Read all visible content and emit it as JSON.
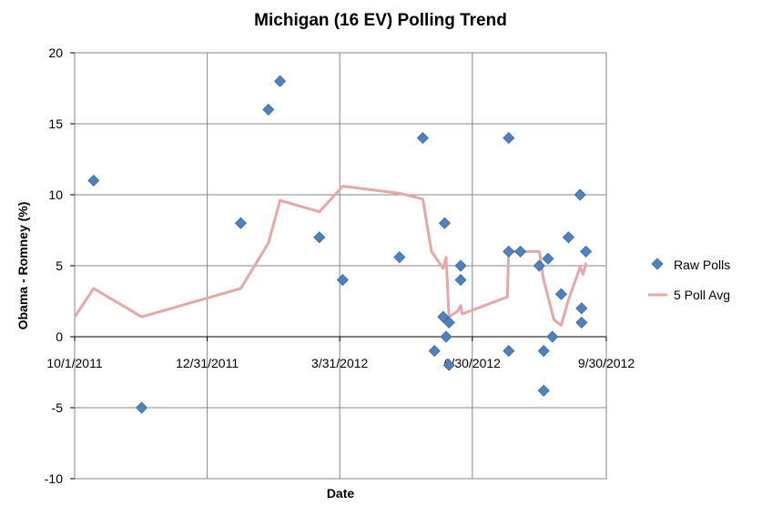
{
  "chart_data": {
    "type": "scatter",
    "title": "Michigan (16 EV) Polling Trend",
    "xlabel": "Date",
    "ylabel": "Obama - Romney (%)",
    "xlim": [
      "2011-10-01",
      "2012-09-30"
    ],
    "ylim": [
      -10,
      20
    ],
    "x_ticks": [
      "2011-10-01",
      "2011-12-31",
      "2012-03-31",
      "2012-06-30",
      "2012-09-30"
    ],
    "x_tick_labels": [
      "10/1/2011",
      "12/31/2011",
      "3/31/2012",
      "6/30/2012",
      "9/30/2012"
    ],
    "y_ticks": [
      -10,
      -5,
      0,
      5,
      10,
      15,
      20
    ],
    "y_tick_labels": [
      "-10",
      "-5",
      "0",
      "5",
      "10",
      "15",
      "20"
    ],
    "grid": true,
    "legend_position": "right",
    "series": [
      {
        "name": "Raw Polls",
        "kind": "scatter",
        "color": "#4f81bd",
        "marker": "diamond",
        "points": [
          {
            "x": "2011-10-14",
            "y": 11
          },
          {
            "x": "2011-11-16",
            "y": -5
          },
          {
            "x": "2012-01-23",
            "y": 8
          },
          {
            "x": "2012-02-11",
            "y": 16
          },
          {
            "x": "2012-02-19",
            "y": 18
          },
          {
            "x": "2012-03-17",
            "y": 7
          },
          {
            "x": "2012-04-02",
            "y": 4
          },
          {
            "x": "2012-05-11",
            "y": 5.6
          },
          {
            "x": "2012-05-27",
            "y": 14
          },
          {
            "x": "2012-06-04",
            "y": -1
          },
          {
            "x": "2012-06-10",
            "y": 1.4
          },
          {
            "x": "2012-06-11",
            "y": 8
          },
          {
            "x": "2012-06-12",
            "y": 0
          },
          {
            "x": "2012-06-14",
            "y": 1
          },
          {
            "x": "2012-06-14",
            "y": -2
          },
          {
            "x": "2012-06-22",
            "y": 5
          },
          {
            "x": "2012-06-22",
            "y": 4
          },
          {
            "x": "2012-07-25",
            "y": 6
          },
          {
            "x": "2012-07-25",
            "y": 14
          },
          {
            "x": "2012-07-25",
            "y": -1
          },
          {
            "x": "2012-08-02",
            "y": 6
          },
          {
            "x": "2012-08-15",
            "y": 5
          },
          {
            "x": "2012-08-18",
            "y": -1
          },
          {
            "x": "2012-08-18",
            "y": -3.8
          },
          {
            "x": "2012-08-21",
            "y": 5.5
          },
          {
            "x": "2012-08-24",
            "y": 0
          },
          {
            "x": "2012-08-30",
            "y": 3
          },
          {
            "x": "2012-09-04",
            "y": 7
          },
          {
            "x": "2012-09-12",
            "y": 10
          },
          {
            "x": "2012-09-13",
            "y": 2
          },
          {
            "x": "2012-09-13",
            "y": 1
          },
          {
            "x": "2012-09-16",
            "y": 6
          }
        ]
      },
      {
        "name": "5 Poll Avg",
        "kind": "line",
        "color": "#e6a8a6",
        "points": [
          {
            "x": "2011-10-01",
            "y": 1.4
          },
          {
            "x": "2011-10-14",
            "y": 3.4
          },
          {
            "x": "2011-11-16",
            "y": 1.4
          },
          {
            "x": "2012-01-23",
            "y": 3.4
          },
          {
            "x": "2012-02-11",
            "y": 6.6
          },
          {
            "x": "2012-02-19",
            "y": 9.6
          },
          {
            "x": "2012-03-17",
            "y": 8.8
          },
          {
            "x": "2012-04-02",
            "y": 10.6
          },
          {
            "x": "2012-05-11",
            "y": 10.1
          },
          {
            "x": "2012-05-27",
            "y": 9.7
          },
          {
            "x": "2012-06-02",
            "y": 6
          },
          {
            "x": "2012-06-10",
            "y": 4.8
          },
          {
            "x": "2012-06-12",
            "y": 5.6
          },
          {
            "x": "2012-06-14",
            "y": 1.4
          },
          {
            "x": "2012-06-20",
            "y": 1.8
          },
          {
            "x": "2012-06-22",
            "y": 2.2
          },
          {
            "x": "2012-06-23",
            "y": 1.6
          },
          {
            "x": "2012-07-24",
            "y": 2.8
          },
          {
            "x": "2012-07-25",
            "y": 6
          },
          {
            "x": "2012-08-15",
            "y": 6
          },
          {
            "x": "2012-08-18",
            "y": 4
          },
          {
            "x": "2012-08-21",
            "y": 2.8
          },
          {
            "x": "2012-08-25",
            "y": 1.2
          },
          {
            "x": "2012-08-30",
            "y": 0.8
          },
          {
            "x": "2012-09-04",
            "y": 2.6
          },
          {
            "x": "2012-09-12",
            "y": 4.9
          },
          {
            "x": "2012-09-14",
            "y": 4.4
          },
          {
            "x": "2012-09-16",
            "y": 5.2
          }
        ]
      }
    ]
  }
}
